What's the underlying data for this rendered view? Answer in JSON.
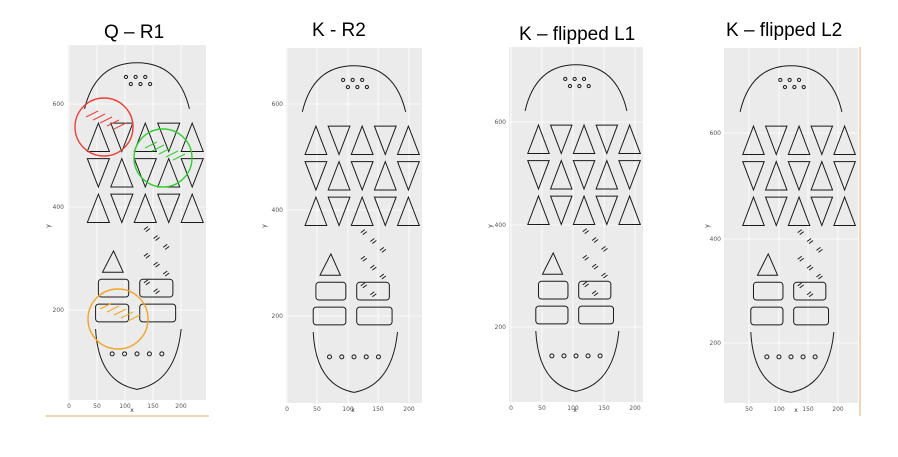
{
  "panels": [
    {
      "title": "Q – R1",
      "x_ticks": [
        "0",
        "50",
        "100",
        "150",
        "200"
      ],
      "y_ticks": [
        "600",
        "400",
        "200"
      ],
      "x_label": "x",
      "y_label": "y",
      "circles": [
        {
          "color": "#e8413a",
          "label": "red-match"
        },
        {
          "color": "#33cc33",
          "label": "green-match"
        },
        {
          "color": "#f0a52a",
          "label": "orange-match"
        }
      ]
    },
    {
      "title": "K - R2",
      "x_ticks": [
        "0",
        "50",
        "100",
        "150",
        "200"
      ],
      "y_ticks": [
        "600",
        "400",
        "200"
      ],
      "x_label": "x",
      "y_label": "y"
    },
    {
      "title": "K – flipped L1",
      "x_ticks": [
        "0",
        "50",
        "100",
        "150",
        "200"
      ],
      "y_ticks": [
        "600",
        "400",
        "200"
      ],
      "x_label": "x",
      "y_label": "y"
    },
    {
      "title": "K – flipped L2",
      "x_ticks": [
        "50",
        "100",
        "150",
        "200"
      ],
      "y_ticks": [
        "600",
        "400",
        "200"
      ],
      "x_label": "x",
      "y_label": "y"
    }
  ],
  "colors": {
    "panel_bg": "#ebebeb",
    "grid": "#ffffff",
    "outline": "#1a1a1a",
    "accent_line": "#e9a86b"
  }
}
